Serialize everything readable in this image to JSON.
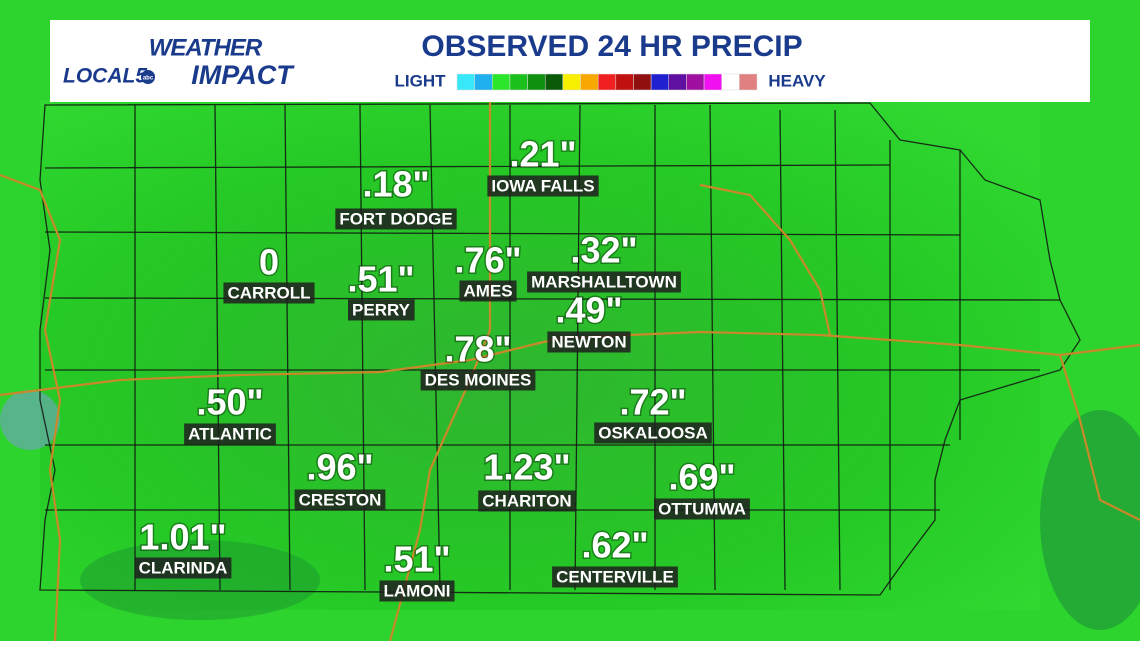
{
  "header": {
    "logo": {
      "line1": "WEATHER",
      "brand": "LOCAL5",
      "badge": "abc",
      "line2": "IMPACT"
    },
    "title": "OBSERVED 24 HR PRECIP"
  },
  "legend": {
    "low": "LIGHT",
    "high": "HEAVY",
    "colors": [
      "#38e8f8",
      "#20b0f0",
      "#2ce62c",
      "#1cc01c",
      "#109010",
      "#0a5a0a",
      "#f8f000",
      "#f8a800",
      "#f02020",
      "#c01010",
      "#901010",
      "#2020d0",
      "#6010a0",
      "#a010a0",
      "#f010f0",
      "#ffffff",
      "#e08080"
    ]
  },
  "cities": [
    {
      "name": "FORT DODGE",
      "amount": ".18\""
    },
    {
      "name": "IOWA FALLS",
      "amount": ".21\""
    },
    {
      "name": "CARROLL",
      "amount": "0"
    },
    {
      "name": "PERRY",
      "amount": ".51\""
    },
    {
      "name": "AMES",
      "amount": ".76\""
    },
    {
      "name": "MARSHALLTOWN",
      "amount": ".32\""
    },
    {
      "name": "NEWTON",
      "amount": ".49\""
    },
    {
      "name": "DES MOINES",
      "amount": ".78\""
    },
    {
      "name": "ATLANTIC",
      "amount": ".50\""
    },
    {
      "name": "OSKALOOSA",
      "amount": ".72\""
    },
    {
      "name": "CRESTON",
      "amount": ".96\""
    },
    {
      "name": "CHARITON",
      "amount": "1.23\""
    },
    {
      "name": "OTTUMWA",
      "amount": ".69\""
    },
    {
      "name": "CLARINDA",
      "amount": "1.01\""
    },
    {
      "name": "LAMONI",
      "amount": ".51\""
    },
    {
      "name": "CENTERVILLE",
      "amount": ".62\""
    }
  ]
}
